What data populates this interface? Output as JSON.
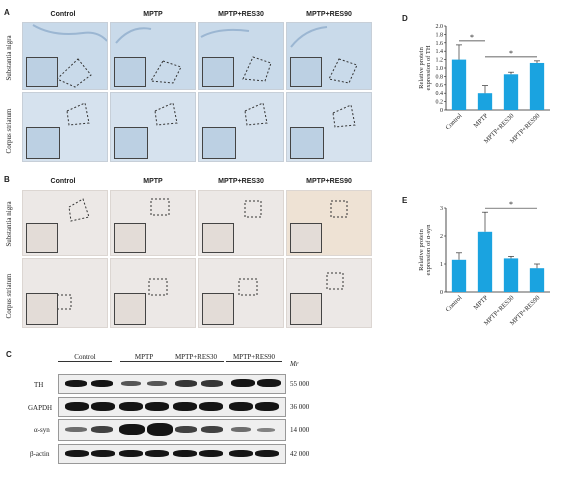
{
  "panels": {
    "A": {
      "label": "A",
      "columns": [
        "Control",
        "MPTP",
        "MPTP+RES30",
        "MPTP+RES90"
      ],
      "rows": [
        "Substantia nigra",
        "Corpus striatum"
      ]
    },
    "B": {
      "label": "B",
      "columns": [
        "Control",
        "MPTP",
        "MPTP+RES30",
        "MPTP+RES90"
      ],
      "rows": [
        "Substantia nigra",
        "Corpus striatum"
      ]
    },
    "C": {
      "label": "C",
      "lane_groups": [
        "Control",
        "MPTP",
        "MPTP+RES30",
        "MPTP+RES90"
      ],
      "mr_header": "Mr",
      "blots": [
        {
          "name": "TH",
          "mw": "55 000"
        },
        {
          "name": "GAPDH",
          "mw": "36 000"
        },
        {
          "name": "α-syn",
          "mw": "14 000"
        },
        {
          "name": "β-actin",
          "mw": "42 000"
        }
      ]
    },
    "D": {
      "label": "D"
    },
    "E": {
      "label": "E"
    }
  },
  "chart_data": [
    {
      "type": "bar",
      "categories": [
        "Control",
        "MPTP",
        "MPTP+RES30",
        "MPTP+RES90"
      ],
      "values": [
        1.2,
        0.4,
        0.85,
        1.12
      ],
      "errors": [
        0.35,
        0.18,
        0.05,
        0.05
      ],
      "ylabel": "Relative protein expression of TH",
      "ylim": [
        0,
        2.0
      ],
      "yticks": [
        "0",
        "0.2",
        "0.4",
        "0.6",
        "0.8",
        "1.0",
        "1.2",
        "1.4",
        "1.6",
        "1.8",
        "2.0"
      ],
      "significance": [
        {
          "from": "Control",
          "to": "MPTP",
          "label": "*"
        },
        {
          "from": "MPTP",
          "to": "MPTP+RES90",
          "label": "*"
        }
      ],
      "bar_color": "#1aa3e0"
    },
    {
      "type": "bar",
      "categories": [
        "Control",
        "MPTP",
        "MPTP+RES30",
        "MPTP+RES90"
      ],
      "values": [
        1.15,
        2.15,
        1.2,
        0.85
      ],
      "errors": [
        0.25,
        0.7,
        0.07,
        0.15
      ],
      "ylabel": "Relative protein expression of α-syn",
      "ylim": [
        0,
        3
      ],
      "yticks": [
        "0",
        "1",
        "2",
        "3"
      ],
      "significance": [
        {
          "from": "MPTP",
          "to": "MPTP+RES90",
          "label": "*"
        }
      ],
      "bar_color": "#1aa3e0"
    }
  ]
}
